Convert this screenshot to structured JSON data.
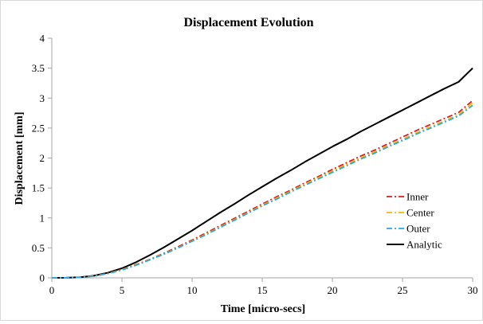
{
  "chart_data": {
    "type": "line",
    "title": "Displacement Evolution",
    "xlabel": "Time [micro-secs]",
    "ylabel": "Displacement [mm]",
    "xlim": [
      0,
      30
    ],
    "ylim": [
      0,
      4
    ],
    "xticks": [
      0,
      5,
      10,
      15,
      20,
      25,
      30
    ],
    "yticks": [
      0,
      0.5,
      1,
      1.5,
      2,
      2.5,
      3,
      3.5,
      4
    ],
    "grid": false,
    "legend_position": "right",
    "x": [
      0,
      1,
      2,
      3,
      4,
      5,
      6,
      7,
      8,
      9,
      10,
      11,
      12,
      13,
      14,
      15,
      16,
      17,
      18,
      19,
      20,
      21,
      22,
      23,
      24,
      25,
      26,
      27,
      28,
      29,
      30
    ],
    "series": [
      {
        "name": "Inner",
        "color": "#e41a1c",
        "dash": "dashdot",
        "values": [
          0,
          0.001,
          0.008,
          0.03,
          0.075,
          0.14,
          0.22,
          0.31,
          0.41,
          0.52,
          0.63,
          0.75,
          0.87,
          0.99,
          1.11,
          1.23,
          1.35,
          1.46,
          1.58,
          1.69,
          1.81,
          1.92,
          2.03,
          2.13,
          2.24,
          2.35,
          2.46,
          2.56,
          2.66,
          2.76,
          2.96
        ]
      },
      {
        "name": "Center",
        "color": "#f5b800",
        "dash": "dashdot",
        "values": [
          0,
          0.001,
          0.008,
          0.029,
          0.072,
          0.135,
          0.215,
          0.305,
          0.4,
          0.505,
          0.615,
          0.73,
          0.85,
          0.97,
          1.09,
          1.21,
          1.33,
          1.44,
          1.56,
          1.67,
          1.78,
          1.89,
          2.0,
          2.1,
          2.21,
          2.31,
          2.42,
          2.52,
          2.62,
          2.72,
          2.92
        ]
      },
      {
        "name": "Outer",
        "color": "#29a8e0",
        "dash": "dashdot",
        "values": [
          0,
          0.001,
          0.007,
          0.028,
          0.07,
          0.13,
          0.21,
          0.3,
          0.395,
          0.5,
          0.61,
          0.72,
          0.84,
          0.96,
          1.08,
          1.2,
          1.31,
          1.43,
          1.54,
          1.65,
          1.76,
          1.87,
          1.98,
          2.08,
          2.19,
          2.29,
          2.4,
          2.5,
          2.6,
          2.7,
          2.88
        ]
      },
      {
        "name": "Analytic",
        "color": "#000000",
        "dash": "solid",
        "values": [
          0,
          0.001,
          0.01,
          0.035,
          0.085,
          0.16,
          0.26,
          0.38,
          0.51,
          0.65,
          0.79,
          0.94,
          1.09,
          1.23,
          1.38,
          1.52,
          1.66,
          1.79,
          1.93,
          2.06,
          2.19,
          2.31,
          2.44,
          2.56,
          2.68,
          2.8,
          2.92,
          3.04,
          3.16,
          3.27,
          3.5
        ]
      }
    ]
  }
}
